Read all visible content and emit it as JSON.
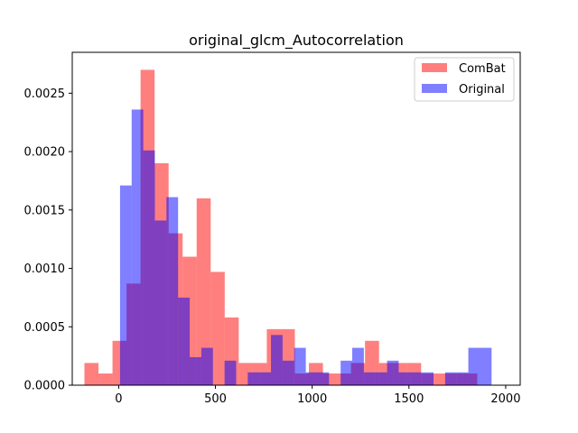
{
  "chart_data": {
    "type": "histogram",
    "title": "original_glcm_Autocorrelation",
    "xlabel": "",
    "ylabel": "",
    "xlim": [
      -240,
      2075
    ],
    "ylim": [
      0,
      0.00285
    ],
    "xticks": [
      0,
      500,
      1000,
      1500,
      2000
    ],
    "xtick_labels": [
      "0",
      "500",
      "1000",
      "1500",
      "2000"
    ],
    "yticks": [
      0,
      0.0005,
      0.001,
      0.0015,
      0.002,
      0.0025
    ],
    "ytick_labels": [
      "0.0000",
      "0.0005",
      "0.0010",
      "0.0015",
      "0.0020",
      "0.0025"
    ],
    "grid": false,
    "legend_position": "upper right",
    "series": [
      {
        "name": "ComBat",
        "color": "#ff0000",
        "alpha": 0.5,
        "bin_start": -177,
        "bin_width": 72.5,
        "values": [
          0.00019,
          0.0001,
          0.00038,
          0.00087,
          0.0027,
          0.0019,
          0.0013,
          0.0011,
          0.0016,
          0.00097,
          0.00058,
          0.00019,
          0.00019,
          0.00048,
          0.00048,
          0.0001,
          0.00019,
          0.0001,
          0.0001,
          0.00019,
          0.00038,
          0.00019,
          0.00019,
          0.00019,
          0.0001,
          0.0001,
          0.0001,
          0.0001
        ]
      },
      {
        "name": "Original",
        "color": "#0000ff",
        "alpha": 0.5,
        "bin_start": 7,
        "bin_width": 60,
        "values": [
          0.00171,
          0.00236,
          0.00201,
          0.00141,
          0.00161,
          0.00075,
          0.00024,
          0.00032,
          0,
          0.00021,
          0,
          0.00011,
          0.00011,
          0.00043,
          0.00021,
          0.00032,
          0.00011,
          0.00011,
          0,
          0.00021,
          0.00032,
          0.00011,
          0.00011,
          0.00021,
          0.00011,
          0.00011,
          0.00011,
          0,
          0.00011,
          0.00011,
          0.00032,
          0.00032
        ]
      }
    ]
  }
}
